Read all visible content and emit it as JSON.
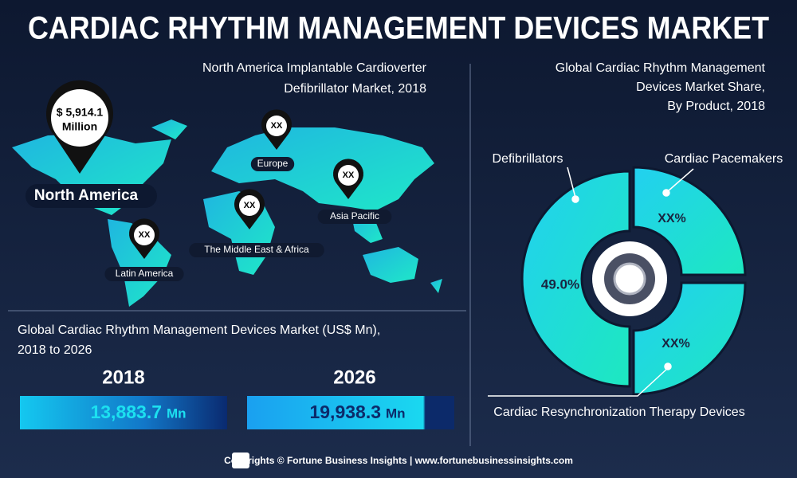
{
  "title": "CARDIAC RHYTHM MANAGEMENT DEVICES MARKET",
  "map": {
    "title_lines": [
      "North America Implantable Cardioverter",
      "Defibrillator Market, 2018"
    ],
    "highlight": {
      "value": "$ 5,914.1",
      "unit": "Million",
      "region": "North America"
    },
    "regions": [
      {
        "label": "Europe",
        "value": "XX"
      },
      {
        "label": "Asia Pacific",
        "value": "XX"
      },
      {
        "label": "The Middle East & Africa",
        "value": "XX"
      },
      {
        "label": "Latin America",
        "value": "XX"
      }
    ]
  },
  "market": {
    "title_lines": [
      "Global Cardiac Rhythm Management Devices Market (US$ Mn),",
      "2018 to 2026"
    ],
    "bars": [
      {
        "year": "2018",
        "value": "13,883.7",
        "unit": "Mn"
      },
      {
        "year": "2026",
        "value": "19,938.3",
        "unit": "Mn"
      }
    ]
  },
  "share": {
    "title_lines": [
      "Global Cardiac Rhythm Management",
      "Devices Market Share,",
      "By Product, 2018"
    ],
    "segments": [
      {
        "name": "Defibrillators",
        "label": "49.0%"
      },
      {
        "name": "Cardiac Pacemakers",
        "label": "XX%"
      },
      {
        "name": "Cardiac Resynchronization Therapy Devices",
        "label": "XX%"
      }
    ]
  },
  "footer": "Copyrights © Fortune Business Insights | www.fortunebusinessinsights.com"
}
